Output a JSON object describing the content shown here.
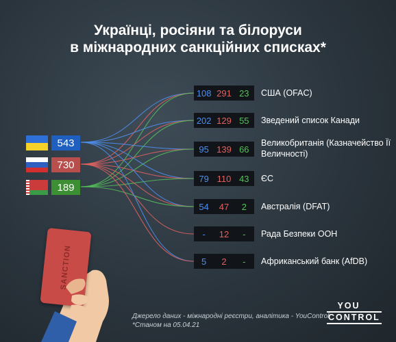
{
  "title_line1": "Українці, росіяни та білоруси",
  "title_line2": "в міжнародних санкційних списках*",
  "colors": {
    "ua": "#4d8ff0",
    "ru": "#e26161",
    "by": "#55c25a",
    "ua_box": "#1f5fbf",
    "ru_box": "#b84f4c",
    "by_box": "#3d8f33"
  },
  "chart_data": {
    "type": "table",
    "series": [
      {
        "name": "Українці",
        "total": "543",
        "icon": "ukraine-flag"
      },
      {
        "name": "Росіяни",
        "total": "730",
        "icon": "russia-flag"
      },
      {
        "name": "Білоруси",
        "total": "189",
        "icon": "belarus-flag"
      }
    ],
    "lists": [
      {
        "label": "США (OFAC)",
        "ua": "108",
        "ru": "291",
        "by": "23"
      },
      {
        "label": "Зведений список Канади",
        "ua": "202",
        "ru": "129",
        "by": "55"
      },
      {
        "label": "Великобританія (Казначейство Її Величності)",
        "ua": "95",
        "ru": "139",
        "by": "66"
      },
      {
        "label": "ЄС",
        "ua": "79",
        "ru": "110",
        "by": "43"
      },
      {
        "label": "Австралія (DFAT)",
        "ua": "54",
        "ru": "47",
        "by": "2"
      },
      {
        "label": "Рада Безпеки ООН",
        "ua": "-",
        "ru": "12",
        "by": "-"
      },
      {
        "label": "Африканський банк (AfDB)",
        "ua": "5",
        "ru": "2",
        "by": "-"
      }
    ]
  },
  "card_text": "SANCTION",
  "source_line1": "Джерело даних - міжнародні реєстри, аналітика - YouControl",
  "source_line2": "*Станом на 05.04.21",
  "logo_line1": "YOU",
  "logo_line2": "CONTROL"
}
